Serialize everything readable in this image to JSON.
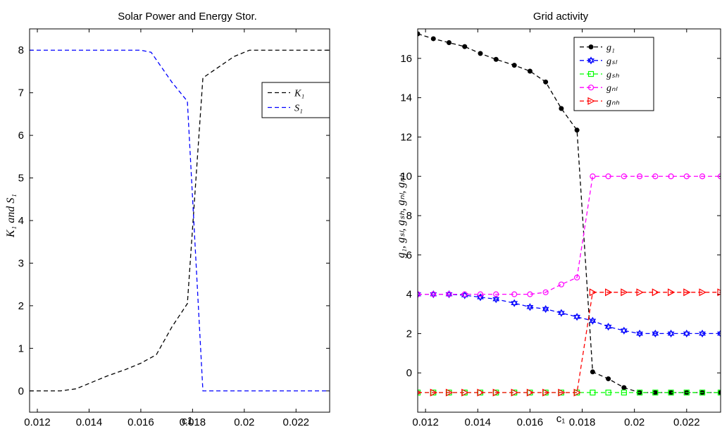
{
  "chart_data": [
    {
      "type": "line",
      "title": "Solar Power and Energy Stor.",
      "xlabel": "c1",
      "ylabel": "K₁ and S₁",
      "xlim": [
        0.0117,
        0.0233
      ],
      "ylim": [
        -0.5,
        8.5
      ],
      "xticks": [
        0.012,
        0.014,
        0.016,
        0.018,
        0.02,
        0.022
      ],
      "xtick_labels": [
        "0.012",
        "0.014",
        "0.016",
        "0.018",
        "0.02",
        "0.022"
      ],
      "yticks": [
        0,
        1,
        2,
        3,
        4,
        5,
        6,
        7,
        8
      ],
      "ytick_labels": [
        "0",
        "1",
        "2",
        "3",
        "4",
        "5",
        "6",
        "7",
        "8"
      ],
      "grid": false,
      "legend_placement": "upper-right",
      "series": [
        {
          "name": "K₁",
          "color": "#000000",
          "style": "dashed",
          "marker": "none",
          "x": [
            0.0117,
            0.0123,
            0.0129,
            0.0135,
            0.0141,
            0.0147,
            0.0154,
            0.016,
            0.0166,
            0.0172,
            0.0178,
            0.0184,
            0.0196,
            0.0202,
            0.0208,
            0.0214,
            0.022,
            0.0226,
            0.0233
          ],
          "y": [
            0,
            0,
            0,
            0.05,
            0.2,
            0.35,
            0.5,
            0.65,
            0.85,
            1.5,
            2.05,
            7.35,
            7.85,
            8.0,
            8.0,
            8.0,
            8.0,
            8.0,
            8.0
          ]
        },
        {
          "name": "S₁",
          "color": "#0000ff",
          "style": "dashed",
          "marker": "none",
          "x": [
            0.0117,
            0.0123,
            0.0129,
            0.0135,
            0.0141,
            0.0147,
            0.0154,
            0.016,
            0.0164,
            0.0168,
            0.0172,
            0.0178,
            0.0184,
            0.019,
            0.0196,
            0.0202,
            0.0208,
            0.0214,
            0.022,
            0.0226,
            0.0233
          ],
          "y": [
            8.0,
            8.0,
            8.0,
            8.0,
            8.0,
            8.0,
            8.0,
            8.0,
            7.95,
            7.6,
            7.25,
            6.8,
            0,
            0,
            0,
            0,
            0,
            0,
            0,
            0,
            0
          ]
        }
      ]
    },
    {
      "type": "line",
      "title": "Grid activity",
      "xlabel": "c₁",
      "ylabel": "g₁, gₛₗ, gₛₕ, gₙₗ, gₙₕ",
      "xlim": [
        0.0117,
        0.0233
      ],
      "ylim": [
        -2,
        17.5
      ],
      "xticks": [
        0.012,
        0.014,
        0.016,
        0.018,
        0.02,
        0.022
      ],
      "xtick_labels": [
        "0.012",
        "0.014",
        "0.016",
        "0.018",
        "0.02",
        "0.022"
      ],
      "yticks": [
        0,
        2,
        4,
        6,
        8,
        10,
        12,
        14,
        16
      ],
      "ytick_labels": [
        "0",
        "2",
        "4",
        "6",
        "8",
        "10",
        "12",
        "14",
        "16"
      ],
      "grid": false,
      "legend_placement": "upper-center",
      "series": [
        {
          "name": "g₁",
          "color": "#000000",
          "marker": "filled-circle",
          "x": [
            0.0117,
            0.0123,
            0.0129,
            0.0135,
            0.0141,
            0.0147,
            0.0154,
            0.016,
            0.0166,
            0.0172,
            0.0178,
            0.0184,
            0.019,
            0.0196,
            0.0202,
            0.0208,
            0.0214,
            0.022,
            0.0226,
            0.0233
          ],
          "y": [
            17.25,
            17.0,
            16.8,
            16.6,
            16.25,
            15.95,
            15.65,
            15.35,
            14.8,
            13.45,
            12.35,
            0.05,
            -0.3,
            -0.75,
            -1.0,
            -1.0,
            -1.0,
            -1.0,
            -1.0,
            -1.0
          ]
        },
        {
          "name": "gₛₗ",
          "color": "#0000ff",
          "marker": "hexagram",
          "x": [
            0.0117,
            0.0123,
            0.0129,
            0.0135,
            0.0141,
            0.0147,
            0.0154,
            0.016,
            0.0166,
            0.0172,
            0.0178,
            0.0184,
            0.019,
            0.0196,
            0.0202,
            0.0208,
            0.0214,
            0.022,
            0.0226,
            0.0233
          ],
          "y": [
            4.0,
            4.0,
            4.0,
            3.95,
            3.85,
            3.75,
            3.55,
            3.35,
            3.25,
            3.05,
            2.85,
            2.65,
            2.35,
            2.15,
            2.0,
            2.0,
            2.0,
            2.0,
            2.0,
            2.0
          ]
        },
        {
          "name": "gₛₕ",
          "color": "#00ff00",
          "marker": "square",
          "x": [
            0.0117,
            0.0123,
            0.0129,
            0.0135,
            0.0141,
            0.0147,
            0.0154,
            0.016,
            0.0166,
            0.0172,
            0.0178,
            0.0184,
            0.019,
            0.0196,
            0.0202,
            0.0208,
            0.0214,
            0.022,
            0.0226,
            0.0233
          ],
          "y": [
            -1,
            -1,
            -1,
            -1,
            -1,
            -1,
            -1,
            -1,
            -1,
            -1,
            -1,
            -1,
            -1,
            -1,
            -1,
            -1,
            -1,
            -1,
            -1,
            -1
          ]
        },
        {
          "name": "gₙₗ",
          "color": "#ff00ff",
          "marker": "circle",
          "x": [
            0.0117,
            0.0123,
            0.0129,
            0.0135,
            0.0141,
            0.0147,
            0.0154,
            0.016,
            0.0166,
            0.0172,
            0.0178,
            0.0184,
            0.019,
            0.0196,
            0.0202,
            0.0208,
            0.0214,
            0.022,
            0.0226,
            0.0233
          ],
          "y": [
            4.0,
            4.0,
            4.0,
            4.0,
            4.0,
            4.0,
            4.0,
            4.0,
            4.1,
            4.5,
            4.85,
            10.0,
            10.0,
            10.0,
            10.0,
            10.0,
            10.0,
            10.0,
            10.0,
            10.0
          ]
        },
        {
          "name": "gₙₕ",
          "color": "#ff0000",
          "marker": "triangle-right",
          "x": [
            0.0117,
            0.0123,
            0.0129,
            0.0135,
            0.0141,
            0.0147,
            0.0154,
            0.016,
            0.0166,
            0.0172,
            0.0178,
            0.0184,
            0.019,
            0.0196,
            0.0202,
            0.0208,
            0.0214,
            0.022,
            0.0226,
            0.0233
          ],
          "y": [
            -1,
            -1,
            -1,
            -1,
            -1,
            -1,
            -1,
            -1,
            -1,
            -1,
            -1,
            4.1,
            4.1,
            4.1,
            4.1,
            4.1,
            4.1,
            4.1,
            4.1,
            4.1
          ]
        }
      ]
    }
  ]
}
